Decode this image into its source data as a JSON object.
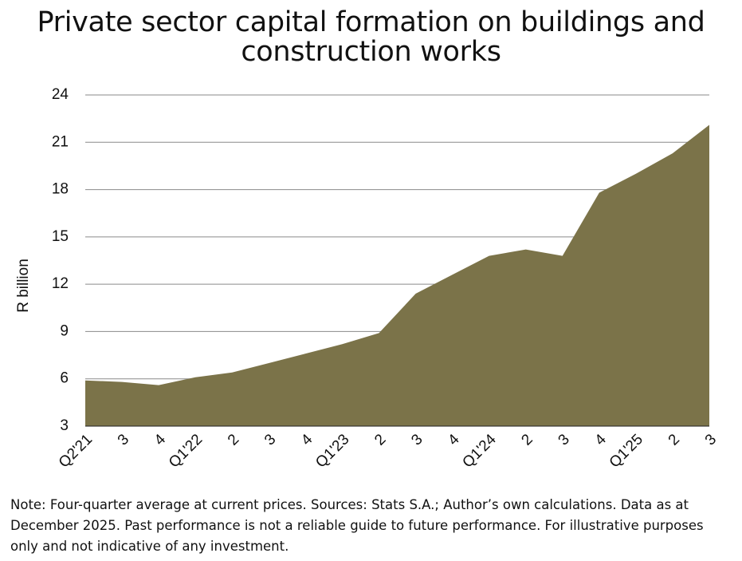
{
  "chart_data": {
    "type": "area",
    "title": "Private sector capital formation on buildings and construction works",
    "y_label": "R billion",
    "categories": [
      "Q2'21",
      "3",
      "4",
      "Q1'22",
      "2",
      "3",
      "4",
      "Q1'23",
      "2",
      "3",
      "4",
      "Q1'24",
      "2",
      "3",
      "4",
      "Q1'25",
      "2",
      "3"
    ],
    "values": [
      5.9,
      5.8,
      5.6,
      6.1,
      6.4,
      7.0,
      7.6,
      8.2,
      8.9,
      11.4,
      12.6,
      13.8,
      14.2,
      13.8,
      17.8,
      19.0,
      20.3,
      22.1
    ],
    "color": "#7b7349",
    "ylim": [
      3,
      24
    ],
    "yticks": [
      3,
      6,
      9,
      12,
      15,
      18,
      21,
      24
    ],
    "grid": true,
    "note": "Note: Four-quarter average at current prices. Sources: Stats S.A.; Author’s own calculations. Data as at December 2025. Past performance is not a reliable guide to future performance. For illustrative purposes only and not indicative of any investment."
  }
}
